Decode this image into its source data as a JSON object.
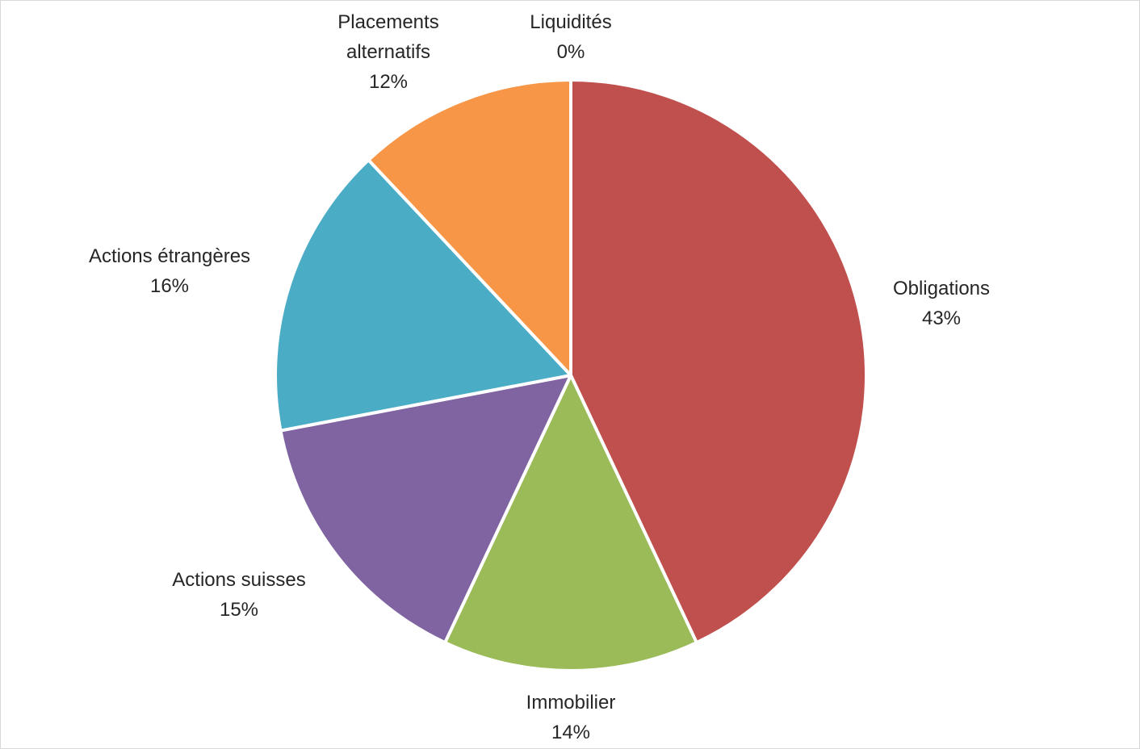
{
  "chart_data": {
    "type": "pie",
    "title": "",
    "start_angle_deg": 0,
    "direction": "clockwise",
    "legend": "none",
    "data_labels": "category-and-percent",
    "slices": [
      {
        "category": "Obligations",
        "value": 43,
        "percent_label": "43%",
        "color": "#c0504d"
      },
      {
        "category": "Immobilier",
        "value": 14,
        "percent_label": "14%",
        "color": "#9bbb59"
      },
      {
        "category": "Actions suisses",
        "value": 15,
        "percent_label": "15%",
        "color": "#8064a2"
      },
      {
        "category": "Actions étrangères",
        "value": 16,
        "percent_label": "16%",
        "color": "#4bacc6"
      },
      {
        "category": "Placements alternatifs",
        "value": 12,
        "percent_label": "12%",
        "color": "#f79646"
      },
      {
        "category": "Liquidités",
        "value": 0,
        "percent_label": "0%",
        "color": "#4f81bd"
      }
    ]
  }
}
